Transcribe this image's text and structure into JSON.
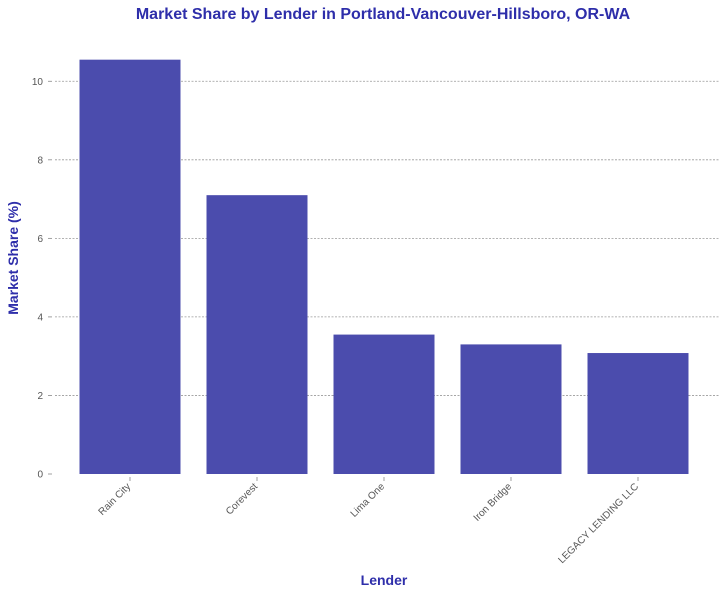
{
  "chart_data": {
    "type": "bar",
    "title": "Market Share by Lender in Portland-Vancouver-Hillsboro, OR-WA",
    "xlabel": "Lender",
    "ylabel": "Market Share (%)",
    "categories": [
      "Rain City",
      "Corevest",
      "Lima One",
      "Iron Bridge",
      "LEGACY LENDING LLC"
    ],
    "values": [
      10.55,
      7.1,
      3.55,
      3.3,
      3.08
    ],
    "ylim": [
      0,
      11
    ],
    "yticks": [
      0,
      2,
      4,
      6,
      8,
      10
    ],
    "grid": true,
    "legend": "none",
    "colors": {
      "bar": "#4b4cad",
      "title": "#2e2eaa",
      "grid": "#999999",
      "tick_text": "#555555"
    }
  }
}
